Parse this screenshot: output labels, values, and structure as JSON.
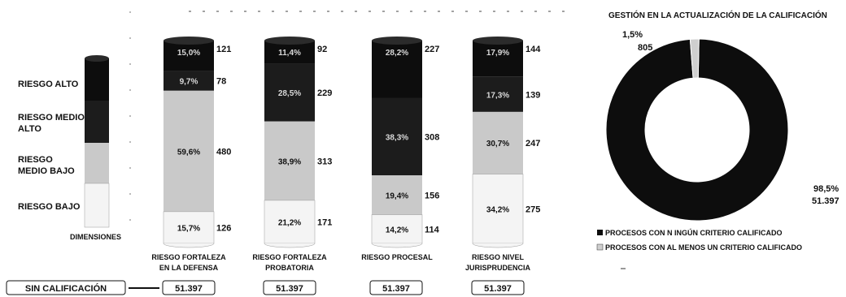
{
  "legend_dimensions": {
    "labels": [
      "RIESGO ALTO",
      "RIESGO MEDIO ALTO",
      "RIESGO MEDIO BAJO",
      "RIESGO  BAJO"
    ],
    "caption": "DIMENSIONES"
  },
  "footer": {
    "sin_calificacion_label": "SIN CALIFICACIÓN",
    "totals": [
      "51.397",
      "51.397",
      "51.397",
      "51.397"
    ]
  },
  "chart_data": [
    {
      "type": "bar",
      "stacked": true,
      "categories": [
        "RIESGO FORTALEZA EN LA DEFENSA",
        "RIESGO FORTALEZA PROBATORIA",
        "RIESGO PROCESAL",
        "RIESGO NIVEL JURISPRUDENCIA"
      ],
      "series": [
        {
          "name": "RIESGO ALTO",
          "percent_labels": [
            "15,0%",
            "11,4%",
            "28,2%",
            "17,9%"
          ],
          "values": [
            121,
            92,
            227,
            144
          ],
          "color": "#0d0d0d"
        },
        {
          "name": "RIESGO MEDIO ALTO",
          "percent_labels": [
            "9,7%",
            "28,5%",
            "38,3%",
            "17,3%"
          ],
          "values": [
            78,
            229,
            308,
            139
          ],
          "color": "#1c1c1c"
        },
        {
          "name": "RIESGO MEDIO BAJO",
          "percent_labels": [
            "59,6%",
            "38,9%",
            "19,4%",
            "30,7%"
          ],
          "values": [
            480,
            313,
            156,
            247
          ],
          "color": "#c9c9c9"
        },
        {
          "name": "RIESGO  BAJO",
          "percent_labels": [
            "15,7%",
            "21,2%",
            "14,2%",
            "34,2%"
          ],
          "values": [
            126,
            171,
            114,
            275
          ],
          "color": "#f4f4f4"
        }
      ]
    },
    {
      "type": "pie",
      "donut": true,
      "title": "GESTIÓN EN LA ACTUALIZACIÓN DE LA CALIFICACIÓN",
      "slices": [
        {
          "name": "PROCESOS CON NINGÚN CRITERIO CALIFICADO",
          "percent_label": "98,5%",
          "value_label": "51.397",
          "value": 51397,
          "color": "#0d0d0d"
        },
        {
          "name": "PROCESOS CON AL MENOS UN CRITERIO CALIFICADO",
          "percent_label": "1,5%",
          "value_label": "805",
          "value": 805,
          "color": "#cfcfcf"
        }
      ],
      "legend_labels": [
        "PROCESOS CON N INGÚN CRITERIO CALIFICADO",
        "PROCESOS CON AL MENOS UN CRITERIO CALIFICADO"
      ]
    }
  ]
}
